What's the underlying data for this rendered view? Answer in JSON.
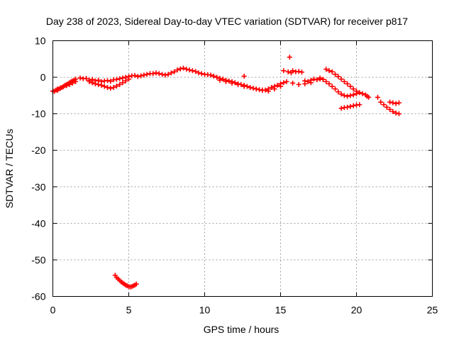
{
  "chart_data": {
    "type": "scatter",
    "title": "Day 238 of 2023, Sidereal Day-to-day VTEC variation (SDTVAR) for receiver p817",
    "xlabel": "GPS time / hours",
    "ylabel": "SDTVAR / TECUs",
    "xlim": [
      0,
      25
    ],
    "ylim": [
      -60,
      10
    ],
    "xticks": [
      0,
      5,
      10,
      15,
      20,
      25
    ],
    "yticks": [
      10,
      0,
      -10,
      -20,
      -30,
      -40,
      -50,
      -60
    ],
    "grid": true,
    "marker": "plus",
    "color": "#ff0000",
    "series": [
      {
        "name": "SDTVAR",
        "x": [
          0.0,
          0.1,
          0.2,
          0.3,
          0.4,
          0.5,
          0.6,
          0.7,
          0.8,
          0.9,
          1.0,
          1.1,
          1.2,
          1.3,
          1.4,
          1.5,
          0.3,
          0.5,
          0.7,
          0.9,
          1.1,
          1.3,
          1.5,
          1.8,
          2.0,
          2.2,
          2.4,
          2.6,
          2.8,
          3.0,
          3.2,
          3.4,
          3.6,
          3.8,
          4.0,
          4.2,
          4.4,
          4.6,
          4.8,
          5.0,
          5.2,
          5.4,
          2.4,
          2.6,
          2.8,
          3.0,
          3.2,
          3.4,
          3.6,
          3.8,
          4.0,
          4.2,
          4.4,
          4.6,
          4.8,
          5.0,
          5.6,
          5.8,
          6.0,
          6.2,
          6.4,
          6.6,
          6.8,
          7.0,
          7.2,
          7.4,
          7.6,
          7.8,
          8.0,
          8.2,
          8.4,
          8.6,
          8.8,
          9.0,
          9.2,
          9.4,
          9.6,
          9.8,
          10.0,
          10.2,
          10.4,
          10.6,
          10.8,
          11.0,
          11.2,
          11.4,
          11.6,
          11.8,
          12.0,
          12.2,
          12.4,
          12.6,
          12.8,
          13.0,
          13.2,
          13.4,
          13.6,
          13.8,
          14.0,
          14.2,
          14.4,
          14.6,
          14.8,
          15.0,
          15.2,
          15.4,
          11.0,
          11.4,
          11.8,
          12.2,
          12.6,
          13.0,
          13.4,
          13.8,
          14.2,
          14.6,
          15.0,
          12.6,
          15.2,
          15.5,
          15.6,
          15.7,
          15.8,
          16.0,
          16.2,
          16.4,
          16.6,
          16.8,
          17.0,
          17.2,
          17.4,
          17.6,
          17.8,
          15.8,
          16.2,
          16.6,
          17.0,
          18.0,
          18.2,
          18.4,
          18.6,
          18.8,
          19.0,
          19.2,
          19.4,
          19.6,
          19.8,
          20.0,
          20.2,
          20.4,
          20.6,
          17.6,
          17.8,
          18.0,
          18.2,
          18.4,
          18.6,
          18.8,
          19.0,
          19.2,
          19.4,
          19.6,
          19.8,
          20.0,
          19.0,
          19.2,
          19.4,
          19.6,
          19.8,
          20.0,
          20.2,
          20.7,
          20.8,
          21.4,
          21.6,
          21.8,
          22.0,
          22.2,
          22.4,
          22.6,
          22.8,
          22.2,
          22.4,
          22.6,
          22.8,
          4.1,
          4.2,
          4.3,
          4.4,
          4.5,
          4.6,
          4.7,
          4.8,
          4.9,
          5.0,
          5.1,
          5.2,
          5.3,
          5.4,
          5.5
        ],
        "y": [
          -3.8,
          -3.9,
          -3.5,
          -3.6,
          -3.2,
          -3.0,
          -2.8,
          -2.5,
          -2.2,
          -2.0,
          -1.8,
          -1.5,
          -1.2,
          -1.0,
          -0.8,
          -0.5,
          -3.2,
          -2.9,
          -2.6,
          -2.3,
          -2.0,
          -1.6,
          -1.2,
          -0.2,
          -0.4,
          -0.3,
          -0.8,
          -0.6,
          -1.0,
          -0.8,
          -1.2,
          -1.0,
          -0.9,
          -1.1,
          -0.7,
          -0.6,
          -0.4,
          -0.2,
          0.0,
          0.2,
          0.4,
          0.5,
          -1.2,
          -1.5,
          -1.8,
          -2.0,
          -2.2,
          -2.5,
          -2.8,
          -3.0,
          -2.8,
          -2.4,
          -2.0,
          -1.5,
          -1.0,
          -0.5,
          0.2,
          0.4,
          0.6,
          0.8,
          1.0,
          1.0,
          1.2,
          1.0,
          0.8,
          0.6,
          0.8,
          1.2,
          1.5,
          2.0,
          2.3,
          2.5,
          2.2,
          2.0,
          1.8,
          1.6,
          1.2,
          1.0,
          0.8,
          0.7,
          0.6,
          0.3,
          0.0,
          -0.3,
          -0.5,
          -0.8,
          -1.0,
          -1.2,
          -1.5,
          -1.8,
          -2.0,
          -2.2,
          -2.5,
          -2.8,
          -3.0,
          -3.2,
          -3.4,
          -3.6,
          -3.5,
          -3.2,
          -2.8,
          -2.5,
          -2.2,
          -1.8,
          -1.5,
          -1.2,
          -0.8,
          -1.2,
          -1.6,
          -2.0,
          -2.5,
          -2.8,
          -3.2,
          -3.5,
          -3.8,
          -3.2,
          -2.5,
          0.3,
          1.8,
          1.5,
          5.5,
          1.2,
          1.8,
          1.5,
          1.6,
          1.4,
          -1.0,
          -1.2,
          -0.8,
          -0.5,
          -0.7,
          -0.5,
          -0.6,
          -1.6,
          -2.0,
          -1.8,
          -1.5,
          2.2,
          1.8,
          1.5,
          0.8,
          0.2,
          -0.5,
          -1.2,
          -1.8,
          -2.5,
          -3.2,
          -3.8,
          -4.2,
          -4.5,
          -4.8,
          -0.2,
          -0.6,
          -1.2,
          -1.8,
          -2.5,
          -3.2,
          -4.0,
          -4.6,
          -5.0,
          -5.2,
          -5.0,
          -4.8,
          -4.5,
          -8.5,
          -8.3,
          -8.2,
          -8.0,
          -7.8,
          -7.6,
          -7.5,
          -5.2,
          -5.5,
          -5.5,
          -6.8,
          -7.5,
          -8.2,
          -8.8,
          -9.4,
          -9.8,
          -10.0,
          -6.8,
          -7.0,
          -7.2,
          -7.0,
          -54.2,
          -54.8,
          -55.2,
          -55.6,
          -56.0,
          -56.3,
          -56.6,
          -56.9,
          -57.1,
          -57.3,
          -57.4,
          -57.3,
          -57.1,
          -56.9,
          -56.6
        ]
      }
    ]
  }
}
